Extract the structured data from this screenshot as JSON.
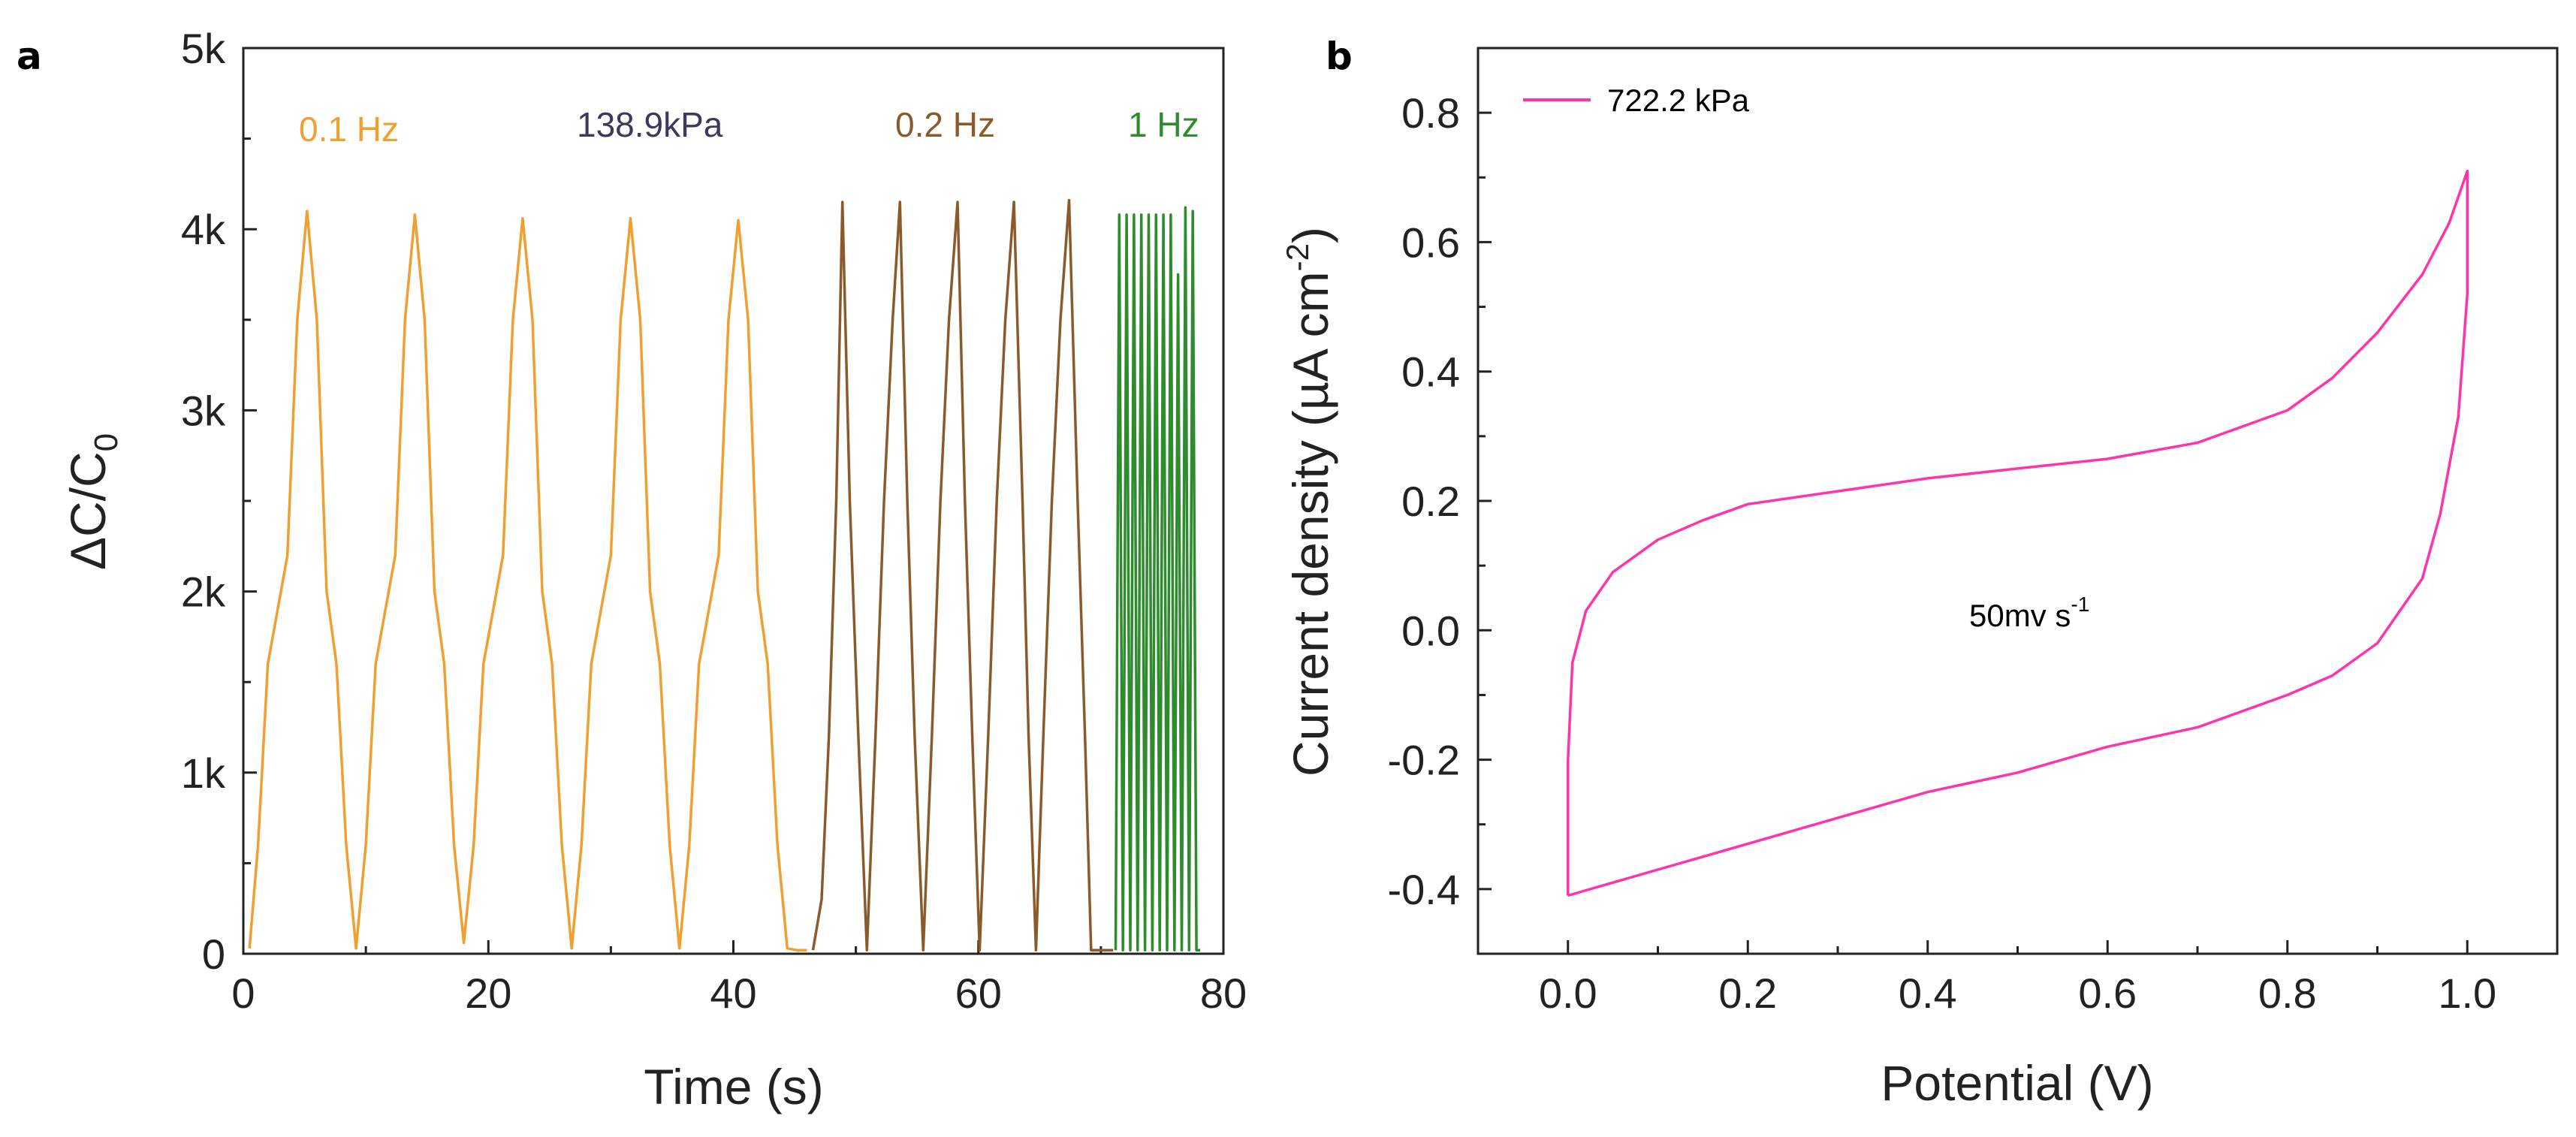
{
  "figure": {
    "panel_a_letter": "a",
    "panel_b_letter": "b"
  },
  "chart_data": [
    {
      "type": "line",
      "panel": "a",
      "xlabel": "Time (s)",
      "ylabel": "ΔC/C",
      "ylabel_subscript": "0",
      "xlim": [
        0,
        80
      ],
      "ylim": [
        0,
        5000
      ],
      "x_ticks": [
        0,
        20,
        40,
        60,
        80
      ],
      "y_ticks": [
        0,
        1000,
        2000,
        3000,
        4000,
        5000
      ],
      "y_tick_labels": [
        "0",
        "1k",
        "2k",
        "3k",
        "4k",
        "5k"
      ],
      "annotations": [
        {
          "text": "0.1 Hz",
          "color": "#f0a030"
        },
        {
          "text": "138.9kPa",
          "color": "#3a3a5a"
        },
        {
          "text": "0.2 Hz",
          "color": "#8b5a2b"
        },
        {
          "text": "1 Hz",
          "color": "#2e8b2e"
        }
      ],
      "series": [
        {
          "color": "#f0a030",
          "x": [
            0.5,
            1.2,
            2.0,
            2.8,
            3.6,
            4.4,
            5.2,
            6.0,
            6.8,
            7.6,
            8.4,
            9.2,
            10.0,
            10.8,
            11.6,
            12.4,
            13.2,
            14.0,
            14.8,
            15.6,
            16.4,
            17.2,
            18.0,
            18.8,
            19.6,
            20.4,
            21.2,
            22.0,
            22.8,
            23.6,
            24.4,
            25.2,
            26.0,
            26.8,
            27.6,
            28.4,
            29.2,
            30.0,
            30.8,
            31.6,
            32.4,
            33.2,
            34.0,
            34.8,
            35.6,
            36.4,
            37.2,
            38.0,
            38.8,
            39.6,
            40.4,
            41.2,
            42.0,
            42.8,
            43.6,
            44.4,
            45.2,
            46.0
          ],
          "y": [
            30,
            600,
            1600,
            1900,
            2200,
            3500,
            4100,
            3500,
            2000,
            1600,
            600,
            30,
            600,
            1600,
            1900,
            2200,
            3500,
            4080,
            3500,
            2000,
            1600,
            600,
            60,
            600,
            1600,
            1900,
            2200,
            3500,
            4060,
            3500,
            2000,
            1600,
            600,
            30,
            600,
            1600,
            1900,
            2200,
            3500,
            4060,
            3500,
            2000,
            1600,
            600,
            30,
            600,
            1600,
            1900,
            2200,
            3500,
            4050,
            3500,
            2000,
            1600,
            600,
            30,
            20,
            20
          ]
        },
        {
          "color": "#8b5a2b",
          "x": [
            46.5,
            47.2,
            47.8,
            48.4,
            48.9,
            49.5,
            50.2,
            50.9,
            51.6,
            52.3,
            53.0,
            53.6,
            54.2,
            54.8,
            55.5,
            56.2,
            56.9,
            57.6,
            58.3,
            58.9,
            59.5,
            60.1,
            60.8,
            61.5,
            62.2,
            62.9,
            63.6,
            64.1,
            64.7,
            65.3,
            66.0,
            66.7,
            67.4,
            68.1,
            68.7,
            69.2,
            69.8,
            70.4,
            71.0
          ],
          "y": [
            20,
            300,
            1200,
            2500,
            4150,
            2500,
            1200,
            20,
            1200,
            2500,
            3500,
            4150,
            2500,
            1200,
            20,
            1200,
            2500,
            3500,
            4150,
            2500,
            1200,
            20,
            1200,
            2500,
            3500,
            4150,
            2500,
            1200,
            20,
            1200,
            2500,
            3500,
            4160,
            2500,
            1200,
            20,
            20,
            20,
            20
          ]
        },
        {
          "color": "#2e8b2e",
          "x": [
            71.2,
            71.5,
            71.8,
            72.1,
            72.4,
            72.7,
            73.0,
            73.3,
            73.6,
            73.9,
            74.2,
            74.5,
            74.8,
            75.1,
            75.4,
            75.7,
            76.0,
            76.3,
            76.6,
            76.9,
            77.2,
            77.5,
            77.8,
            78.1
          ],
          "y": [
            20,
            4080,
            20,
            4080,
            20,
            4080,
            20,
            4080,
            20,
            4080,
            20,
            4080,
            20,
            4080,
            20,
            4080,
            20,
            3750,
            20,
            4120,
            20,
            4100,
            20,
            20
          ]
        }
      ]
    },
    {
      "type": "line",
      "panel": "b",
      "xlabel": "Potential (V)",
      "ylabel": "Current density (µA cm",
      "ylabel_superscript": "-2",
      "ylabel_close": ")",
      "xlim": [
        -0.1,
        1.1
      ],
      "ylim": [
        -0.5,
        0.9
      ],
      "x_ticks": [
        0.0,
        0.2,
        0.4,
        0.6,
        0.8,
        1.0
      ],
      "x_tick_labels": [
        "0.0",
        "0.2",
        "0.4",
        "0.6",
        "0.8",
        "1.0"
      ],
      "y_ticks": [
        -0.4,
        -0.2,
        0.0,
        0.2,
        0.4,
        0.6,
        0.8
      ],
      "y_tick_labels": [
        "-0.4",
        "-0.2",
        "0.0",
        "0.2",
        "0.4",
        "0.6",
        "0.8"
      ],
      "annotation": {
        "text": "50mv s",
        "superscript": "-1"
      },
      "legend": {
        "placement": "top-left"
      },
      "series": [
        {
          "name": "722.2 kPa",
          "color": "#ff33aa",
          "x": [
            0.0,
            0.0,
            0.005,
            0.02,
            0.05,
            0.1,
            0.15,
            0.2,
            0.3,
            0.4,
            0.5,
            0.6,
            0.7,
            0.8,
            0.85,
            0.9,
            0.95,
            0.98,
            1.0,
            1.0,
            0.99,
            0.97,
            0.95,
            0.9,
            0.85,
            0.8,
            0.7,
            0.6,
            0.5,
            0.4,
            0.3,
            0.2,
            0.1,
            0.05,
            0.0
          ],
          "y": [
            -0.41,
            -0.2,
            -0.05,
            0.03,
            0.09,
            0.14,
            0.17,
            0.195,
            0.215,
            0.235,
            0.25,
            0.265,
            0.29,
            0.34,
            0.39,
            0.46,
            0.55,
            0.63,
            0.71,
            0.52,
            0.33,
            0.18,
            0.08,
            -0.02,
            -0.07,
            -0.1,
            -0.15,
            -0.18,
            -0.22,
            -0.25,
            -0.29,
            -0.33,
            -0.37,
            -0.39,
            -0.41
          ]
        }
      ]
    }
  ]
}
